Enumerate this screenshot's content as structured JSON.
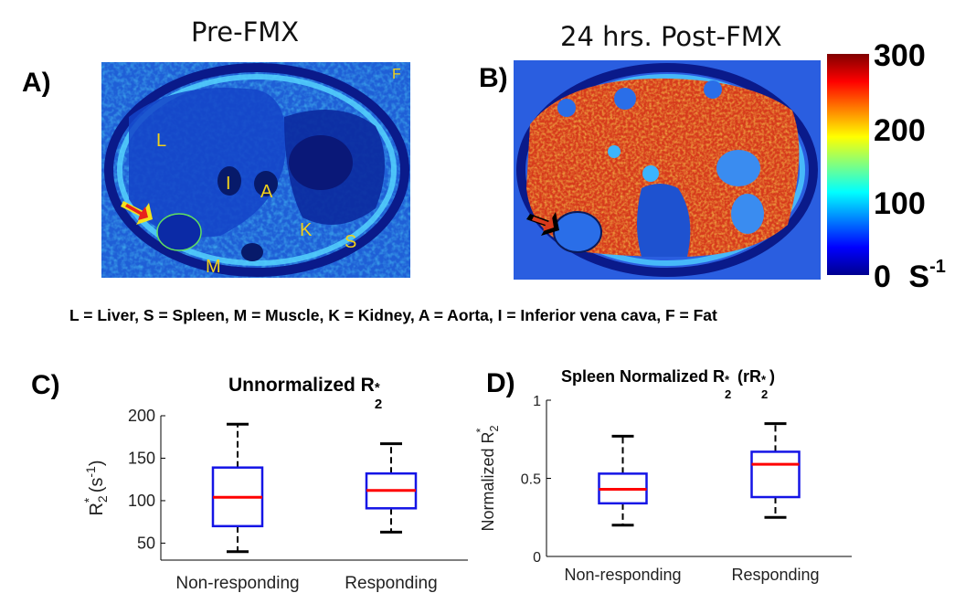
{
  "panels": {
    "a": {
      "letter": "A)",
      "title": "Pre-FMX"
    },
    "b": {
      "letter": "B)",
      "title": "24 hrs. Post-FMX"
    },
    "c": {
      "letter": "C)"
    },
    "d": {
      "letter": "D)"
    }
  },
  "organ_labels_a": {
    "liver": "L",
    "inferior_vena_cava": "I",
    "aorta": "A",
    "kidney": "K",
    "spleen": "S",
    "muscle": "M",
    "fat": "F"
  },
  "colorbar": {
    "max_label": "300",
    "mid_high_label": "200",
    "mid_label": "100",
    "min_label": "0",
    "unit_base": "S",
    "unit_exp": "-1",
    "colors": [
      "#00008f",
      "#0000ff",
      "#0080ff",
      "#00ffff",
      "#80ff80",
      "#ffff00",
      "#ff8000",
      "#ff0000",
      "#800000"
    ]
  },
  "legend_text": "L = Liver, S = Spleen, M = Muscle, K = Kidney, A = Aorta, I = Inferior vena cava, F = Fat",
  "chart_data": [
    {
      "type": "box",
      "title_main": "Unnormalized R",
      "title_sub": "2",
      "title_sup": "*",
      "ylabel_main": "R",
      "ylabel_sub": "2",
      "ylabel_sup": "*",
      "ylabel_units": " (s",
      "ylabel_units_exp": "-1",
      "ylabel_units_close": ")",
      "ylim": [
        30,
        200
      ],
      "yticks": [
        50,
        100,
        150,
        200
      ],
      "ytick_labels": [
        "50",
        "100",
        "150",
        "200"
      ],
      "categories": [
        "Non-responding",
        "Responding"
      ],
      "boxes": [
        {
          "min": 40,
          "q1": 70,
          "median": 104,
          "q3": 139,
          "max": 190
        },
        {
          "min": 63,
          "q1": 91,
          "median": 112,
          "q3": 132,
          "max": 167
        }
      ]
    },
    {
      "type": "box",
      "title_main": "Spleen Normalized R",
      "title_sub": "2",
      "title_sup": "*",
      "title_paren_open": " (rR",
      "title_paren_sub": "2",
      "title_paren_sup": "*",
      "title_paren_close": ")",
      "ylabel_main": "Normalized R",
      "ylabel_sub": "2",
      "ylabel_sup": "*",
      "ylim": [
        0,
        1
      ],
      "yticks": [
        0,
        0.5,
        1
      ],
      "ytick_labels": [
        "0",
        "0.5",
        "1"
      ],
      "categories": [
        "Non-responding",
        "Responding"
      ],
      "boxes": [
        {
          "min": 0.2,
          "q1": 0.34,
          "median": 0.43,
          "q3": 0.53,
          "max": 0.77
        },
        {
          "min": 0.25,
          "q1": 0.38,
          "median": 0.59,
          "q3": 0.67,
          "max": 0.85
        }
      ]
    }
  ]
}
